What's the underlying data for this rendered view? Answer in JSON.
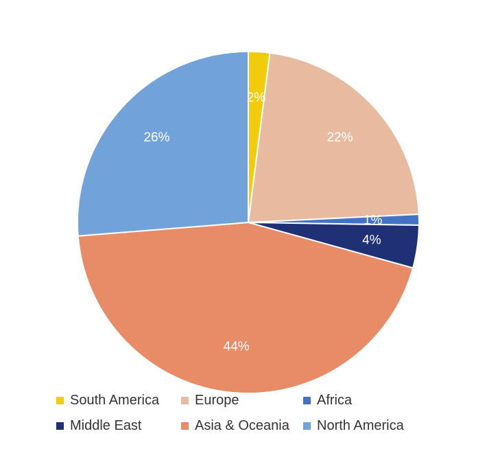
{
  "chart_data": {
    "type": "pie",
    "title": "",
    "slices": [
      {
        "name": "South America",
        "value": 2,
        "label": "2%",
        "color": "#F2CC0C"
      },
      {
        "name": "Europe",
        "value": 22,
        "label": "22%",
        "color": "#E8BBA1"
      },
      {
        "name": "Africa",
        "value": 1,
        "label": "1%",
        "color": "#4472C4"
      },
      {
        "name": "Middle East",
        "value": 4,
        "label": "4%",
        "color": "#1F3174"
      },
      {
        "name": "Asia & Oceania",
        "value": 44,
        "label": "44%",
        "color": "#E88C68"
      },
      {
        "name": "North America",
        "value": 26,
        "label": "26%",
        "color": "#71A3DA"
      }
    ],
    "start_angle_deg": 0,
    "direction": "clockwise",
    "legend_position": "bottom",
    "legend_order": [
      "South America",
      "Europe",
      "Africa",
      "Middle East",
      "Asia & Oceania",
      "North America"
    ]
  }
}
